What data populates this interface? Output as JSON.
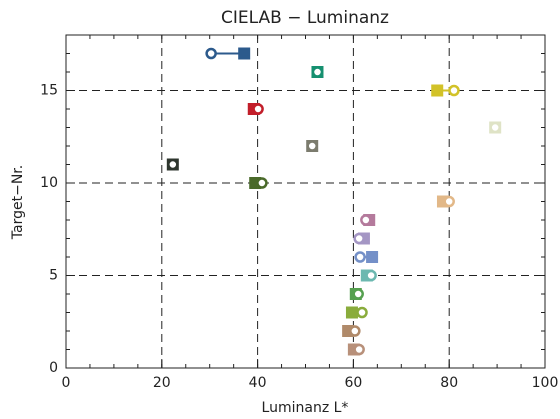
{
  "chart_data": {
    "type": "dumbbell",
    "title": "CIELAB − Luminanz",
    "xlabel": "Luminanz L*",
    "ylabel": "Target−Nr.",
    "y": [
      1,
      2,
      3,
      4,
      5,
      6,
      7,
      8,
      9,
      10,
      11,
      12,
      13,
      14,
      15,
      16,
      17
    ],
    "x_target": [
      60.1,
      58.9,
      59.7,
      60.5,
      62.8,
      63.9,
      62.2,
      63.3,
      78.7,
      39.5,
      22.3,
      51.4,
      89.6,
      39.2,
      77.5,
      52.5,
      37.2
    ],
    "x_measured": [
      61.2,
      60.3,
      61.8,
      61.0,
      63.7,
      61.4,
      61.2,
      62.6,
      80.0,
      40.9,
      22.3,
      51.4,
      89.6,
      40.1,
      81.0,
      52.5,
      30.3
    ],
    "colors": [
      "#b8907a",
      "#b08a6a",
      "#8aac3c",
      "#56a050",
      "#6cb8b0",
      "#7490c8",
      "#a496c4",
      "#b47a9c",
      "#e2b888",
      "#4a6a2a",
      "#2e362e",
      "#7c7c6e",
      "#dfe3c6",
      "#c21e2a",
      "#d2c228",
      "#169070",
      "#2c5a8c"
    ],
    "xlim": [
      0,
      100
    ],
    "ylim": [
      0,
      18
    ],
    "xticks": [
      0,
      20,
      40,
      60,
      80,
      100
    ],
    "yticks": [
      0,
      5,
      10,
      15
    ],
    "xminorticks": [
      0,
      5,
      10,
      15,
      20,
      25,
      30,
      35,
      40,
      45,
      50,
      55,
      60,
      65,
      70,
      75,
      80,
      85,
      90,
      95,
      100
    ],
    "yminorticks": [
      0,
      1,
      2,
      3,
      4,
      5,
      6,
      7,
      8,
      9,
      10,
      11,
      12,
      13,
      14,
      15,
      16,
      17,
      18
    ],
    "grid": true
  }
}
